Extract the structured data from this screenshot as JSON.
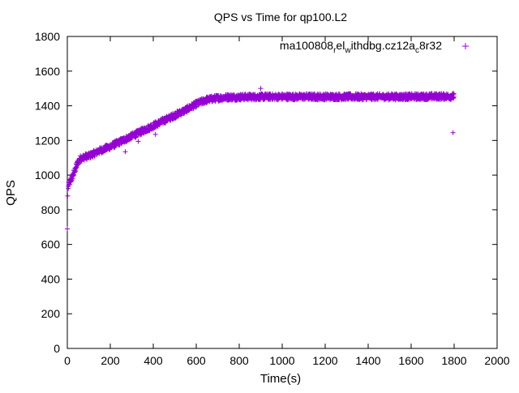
{
  "chart_data": {
    "type": "scatter",
    "title": "QPS vs Time for qp100.L2",
    "xlabel": "Time(s)",
    "ylabel": "QPS",
    "xlim": [
      0,
      2000
    ],
    "ylim": [
      0,
      1800
    ],
    "xticks": [
      0,
      200,
      400,
      600,
      800,
      1000,
      1200,
      1400,
      1600,
      1800,
      2000
    ],
    "yticks": [
      0,
      200,
      400,
      600,
      800,
      1000,
      1200,
      1400,
      1600,
      1800
    ],
    "grid": false,
    "legend_position": "top-right",
    "marker": "plus",
    "color": "#9400d3",
    "legend": {
      "label_parts": [
        "ma100808",
        "r",
        "el",
        "w",
        "ithdbg.cz12a",
        "c",
        "8r32"
      ],
      "subscript_parts": [
        1,
        3,
        5
      ]
    },
    "series": [
      {
        "name": "ma100808_rel_withdbg.cz12a_c8r32",
        "trend": [
          [
            0,
            690
          ],
          [
            2,
            880
          ],
          [
            5,
            930
          ],
          [
            10,
            955
          ],
          [
            20,
            980
          ],
          [
            30,
            1010
          ],
          [
            40,
            1045
          ],
          [
            50,
            1075
          ],
          [
            60,
            1095
          ],
          [
            80,
            1105
          ],
          [
            100,
            1110
          ],
          [
            150,
            1140
          ],
          [
            200,
            1165
          ],
          [
            250,
            1195
          ],
          [
            300,
            1225
          ],
          [
            350,
            1255
          ],
          [
            400,
            1285
          ],
          [
            450,
            1315
          ],
          [
            500,
            1345
          ],
          [
            550,
            1375
          ],
          [
            600,
            1410
          ],
          [
            650,
            1435
          ],
          [
            700,
            1445
          ],
          [
            750,
            1450
          ],
          [
            800,
            1450
          ],
          [
            900,
            1452
          ],
          [
            1000,
            1452
          ],
          [
            1200,
            1452
          ],
          [
            1400,
            1452
          ],
          [
            1600,
            1452
          ],
          [
            1800,
            1455
          ]
        ],
        "spread": 18,
        "outliers": [
          [
            0,
            690
          ],
          [
            2,
            880
          ],
          [
            900,
            1500
          ],
          [
            1795,
            1245
          ],
          [
            270,
            1135
          ],
          [
            330,
            1195
          ],
          [
            410,
            1235
          ],
          [
            120,
            1125
          ]
        ]
      }
    ]
  }
}
